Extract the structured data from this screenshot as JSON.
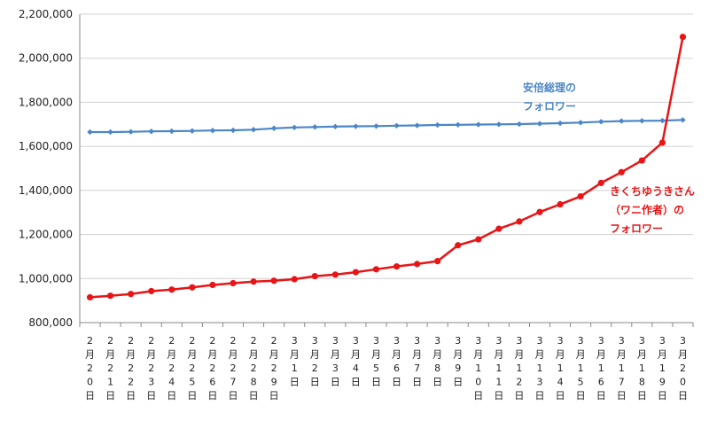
{
  "chart_data": {
    "type": "line",
    "title": "",
    "xlabel": "",
    "ylabel": "",
    "ylim": [
      800000,
      2200000
    ],
    "yticks": [
      800000,
      1000000,
      1200000,
      1400000,
      1600000,
      1800000,
      2000000,
      2200000
    ],
    "ytick_labels": [
      "800,000",
      "1,000,000",
      "1,200,000",
      "1,400,000",
      "1,600,000",
      "1,800,000",
      "2,000,000",
      "2,200,000"
    ],
    "grid": "horizontal",
    "categories": [
      "2月20日",
      "2月21日",
      "2月22日",
      "2月23日",
      "2月24日",
      "2月25日",
      "2月26日",
      "2月27日",
      "2月28日",
      "2月29日",
      "3月1日",
      "3月2日",
      "3月3日",
      "3月4日",
      "3月5日",
      "3月6日",
      "3月7日",
      "3月8日",
      "3月9日",
      "3月10日",
      "3月11日",
      "3月12日",
      "3月13日",
      "3月14日",
      "3月15日",
      "3月16日",
      "3月17日",
      "3月18日",
      "3月19日",
      "3月20日"
    ],
    "series": [
      {
        "color": "#4a86c8",
        "marker": "diamond",
        "values": [
          1665000,
          1665000,
          1666000,
          1668000,
          1669000,
          1670000,
          1672000,
          1673000,
          1676000,
          1682000,
          1686000,
          1688000,
          1690000,
          1691000,
          1692000,
          1694000,
          1695000,
          1697000,
          1698000,
          1699000,
          1700000,
          1701000,
          1703000,
          1705000,
          1708000,
          1712000,
          1715000,
          1716000,
          1717000,
          1720000
        ]
      },
      {
        "color": "#e81416",
        "marker": "circle",
        "values": [
          915000,
          922000,
          930000,
          943000,
          950000,
          960000,
          971000,
          979000,
          986000,
          990000,
          997000,
          1011000,
          1018000,
          1029000,
          1042000,
          1055000,
          1066000,
          1079000,
          1151000,
          1178000,
          1226000,
          1259000,
          1302000,
          1337000,
          1373000,
          1434000,
          1483000,
          1536000,
          1617000,
          2097000
        ]
      }
    ],
    "annotations": [
      {
        "lines": [
          "安倍総理の",
          "フォロワー"
        ],
        "color": "#4a86c8",
        "series": 0
      },
      {
        "lines": [
          "きくちゆうきさん",
          "（ワニ作者）の",
          "フォロワー"
        ],
        "color": "#e81416",
        "series": 1
      }
    ]
  }
}
